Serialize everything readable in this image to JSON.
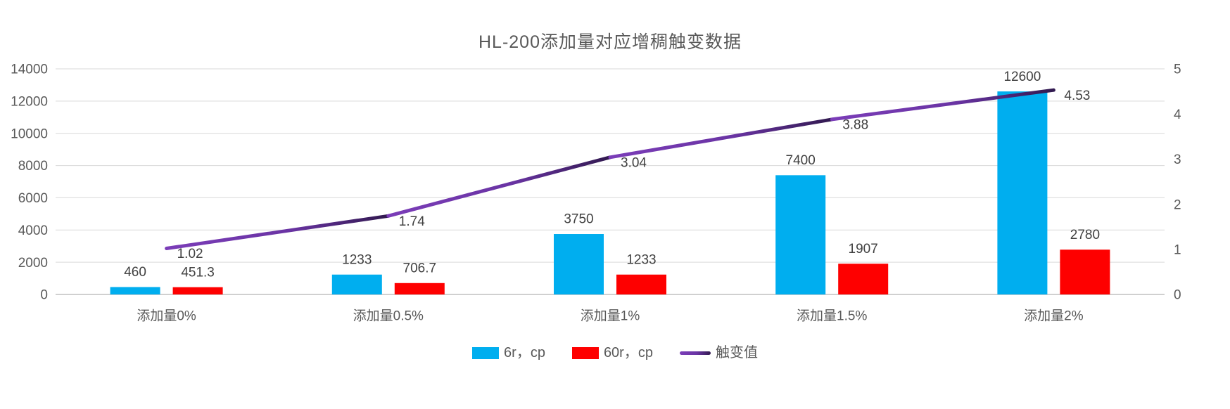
{
  "chart_data": {
    "type": "combo-bar-line",
    "title": "HL-200添加量对应增稠触变数据",
    "categories": [
      "添加量0%",
      "添加量0.5%",
      "添加量1%",
      "添加量1.5%",
      "添加量2%"
    ],
    "series": [
      {
        "name": "6r，cp",
        "type": "bar",
        "axis": "left",
        "color": "#00AEEF",
        "values": [
          460,
          1233,
          3750,
          7400,
          12600
        ],
        "labels": [
          "460",
          "1233",
          "3750",
          "7400",
          "12600"
        ]
      },
      {
        "name": "60r，cp",
        "type": "bar",
        "axis": "left",
        "color": "#FE0000",
        "values": [
          451.3,
          706.7,
          1233,
          1907,
          2780
        ],
        "labels": [
          "451.3",
          "706.7",
          "1233",
          "1907",
          "2780"
        ]
      },
      {
        "name": "触变值",
        "type": "line",
        "axis": "right",
        "color": "#7B3DB8",
        "color_mid": "#6A34A4",
        "color_dark": "#31194F",
        "values": [
          1.02,
          1.74,
          3.04,
          3.88,
          4.53
        ],
        "labels": [
          "1.02",
          "1.74",
          "3.04",
          "3.88",
          "4.53"
        ]
      }
    ],
    "left_axis": {
      "min": 0,
      "max": 14000,
      "step": 2000,
      "ticks": [
        "0",
        "2000",
        "4000",
        "6000",
        "8000",
        "10000",
        "12000",
        "14000"
      ]
    },
    "right_axis": {
      "min": 0,
      "max": 5,
      "step": 1,
      "ticks": [
        "0",
        "1",
        "2",
        "3",
        "4",
        "5"
      ]
    },
    "grid": "horizontal",
    "legend_position": "bottom",
    "colors": {
      "background": "#FFFFFF",
      "gridline": "#D9D9D9",
      "axis_line": "#D0D0D0",
      "tick_label": "#595959",
      "data_label": "#404040",
      "title": "#595959"
    }
  }
}
